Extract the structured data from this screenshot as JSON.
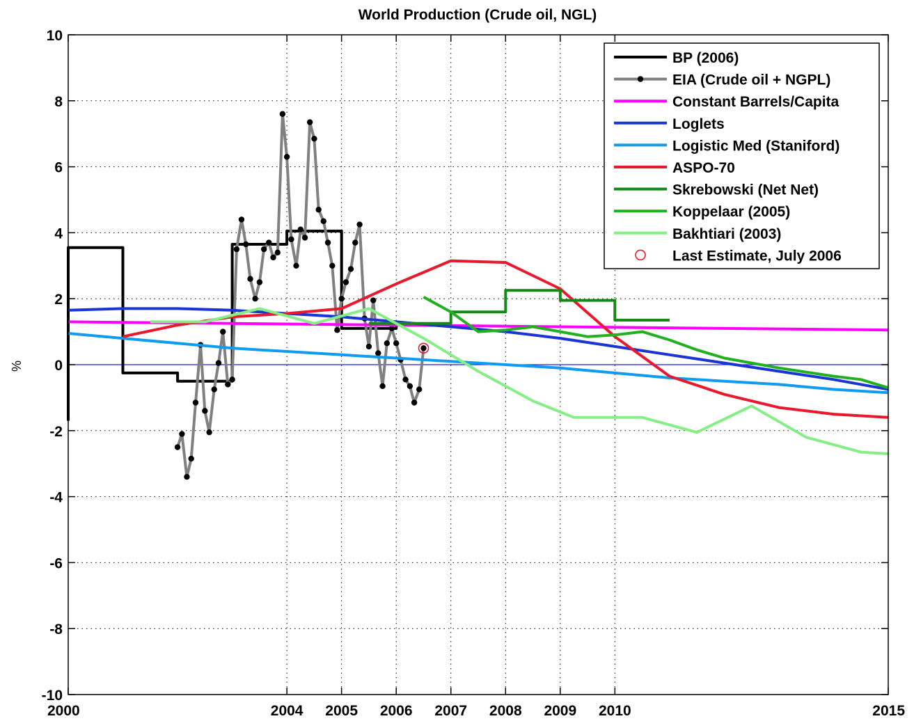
{
  "chart_data": {
    "type": "line",
    "title": "World Production (Crude oil, NGL)",
    "xlabel": "",
    "ylabel": "%",
    "xlim": [
      2000,
      2015
    ],
    "ylim": [
      -10,
      10
    ],
    "x_ticks": [
      2000,
      2004,
      2005,
      2006,
      2007,
      2008,
      2009,
      2010,
      2015
    ],
    "y_ticks": [
      -10,
      -8,
      -6,
      -4,
      -2,
      0,
      2,
      4,
      6,
      8,
      10
    ],
    "grid": true,
    "legend_position": "top-right",
    "series": [
      {
        "name": "BP (2006)",
        "color": "#000000",
        "style": "step",
        "points": [
          [
            2000,
            -1.7
          ],
          [
            2000,
            3.55
          ],
          [
            2001,
            3.55
          ],
          [
            2001,
            -0.25
          ],
          [
            2002,
            -0.25
          ],
          [
            2002,
            -0.5
          ],
          [
            2003,
            -0.5
          ],
          [
            2003,
            3.65
          ],
          [
            2004,
            3.65
          ],
          [
            2004,
            4.05
          ],
          [
            2005,
            4.05
          ],
          [
            2005,
            1.1
          ],
          [
            2006,
            1.1
          ],
          [
            2006,
            1.2
          ]
        ]
      },
      {
        "name": "EIA (Crude oil + NGPL)",
        "color": "#808080",
        "marker": "#000000",
        "style": "line-dots",
        "points": [
          [
            2002.0,
            -2.5
          ],
          [
            2002.08,
            -2.1
          ],
          [
            2002.17,
            -3.4
          ],
          [
            2002.25,
            -2.85
          ],
          [
            2002.33,
            -1.15
          ],
          [
            2002.42,
            0.6
          ],
          [
            2002.5,
            -1.4
          ],
          [
            2002.58,
            -2.05
          ],
          [
            2002.67,
            -0.75
          ],
          [
            2002.75,
            0.05
          ],
          [
            2002.83,
            1.0
          ],
          [
            2002.92,
            -0.6
          ],
          [
            2003.0,
            -0.45
          ],
          [
            2003.08,
            3.5
          ],
          [
            2003.17,
            4.4
          ],
          [
            2003.25,
            3.65
          ],
          [
            2003.33,
            2.6
          ],
          [
            2003.42,
            2.0
          ],
          [
            2003.5,
            2.5
          ],
          [
            2003.58,
            3.5
          ],
          [
            2003.67,
            3.7
          ],
          [
            2003.75,
            3.25
          ],
          [
            2003.83,
            3.4
          ],
          [
            2003.92,
            7.6
          ],
          [
            2004.0,
            6.3
          ],
          [
            2004.08,
            3.8
          ],
          [
            2004.17,
            3.0
          ],
          [
            2004.25,
            4.1
          ],
          [
            2004.33,
            3.85
          ],
          [
            2004.42,
            7.35
          ],
          [
            2004.5,
            6.85
          ],
          [
            2004.58,
            4.7
          ],
          [
            2004.67,
            4.35
          ],
          [
            2004.75,
            3.7
          ],
          [
            2004.83,
            3.0
          ],
          [
            2004.92,
            1.05
          ],
          [
            2005.0,
            2.0
          ],
          [
            2005.08,
            2.5
          ],
          [
            2005.17,
            2.9
          ],
          [
            2005.25,
            3.7
          ],
          [
            2005.33,
            4.25
          ],
          [
            2005.42,
            1.4
          ],
          [
            2005.5,
            0.55
          ],
          [
            2005.58,
            1.95
          ],
          [
            2005.67,
            0.35
          ],
          [
            2005.75,
            -0.65
          ],
          [
            2005.83,
            0.65
          ],
          [
            2005.92,
            1.1
          ],
          [
            2006.0,
            0.65
          ],
          [
            2006.08,
            0.15
          ],
          [
            2006.17,
            -0.45
          ],
          [
            2006.25,
            -0.65
          ],
          [
            2006.33,
            -1.15
          ],
          [
            2006.42,
            -0.75
          ],
          [
            2006.5,
            0.5
          ]
        ]
      },
      {
        "name": "Constant Barrels/Capita",
        "color": "#ff00ff",
        "style": "line",
        "points": [
          [
            2000,
            1.3
          ],
          [
            2003,
            1.25
          ],
          [
            2006,
            1.2
          ],
          [
            2009,
            1.15
          ],
          [
            2012,
            1.1
          ],
          [
            2015,
            1.05
          ]
        ]
      },
      {
        "name": "Loglets",
        "color": "#1a35d6",
        "style": "line",
        "points": [
          [
            2000,
            1.65
          ],
          [
            2001,
            1.7
          ],
          [
            2002,
            1.7
          ],
          [
            2003,
            1.65
          ],
          [
            2004,
            1.55
          ],
          [
            2005,
            1.45
          ],
          [
            2006,
            1.3
          ],
          [
            2007,
            1.15
          ],
          [
            2008,
            1.0
          ],
          [
            2009,
            0.8
          ],
          [
            2010,
            0.55
          ],
          [
            2011,
            0.3
          ],
          [
            2012,
            0.05
          ],
          [
            2013,
            -0.2
          ],
          [
            2014,
            -0.45
          ],
          [
            2015,
            -0.75
          ]
        ]
      },
      {
        "name": "Logistic Med (Staniford)",
        "color": "#0f9bf0",
        "style": "line",
        "points": [
          [
            2000,
            0.95
          ],
          [
            2001,
            0.8
          ],
          [
            2002,
            0.65
          ],
          [
            2003,
            0.5
          ],
          [
            2004,
            0.4
          ],
          [
            2005,
            0.3
          ],
          [
            2006,
            0.2
          ],
          [
            2007,
            0.1
          ],
          [
            2008,
            0.0
          ],
          [
            2009,
            -0.1
          ],
          [
            2010,
            -0.25
          ],
          [
            2011,
            -0.4
          ],
          [
            2012,
            -0.5
          ],
          [
            2013,
            -0.6
          ],
          [
            2014,
            -0.75
          ],
          [
            2015,
            -0.85
          ]
        ]
      },
      {
        "name": "ASPO-70",
        "color": "#e8192c",
        "style": "line",
        "points": [
          [
            2001,
            0.85
          ],
          [
            2002,
            1.2
          ],
          [
            2003,
            1.45
          ],
          [
            2004,
            1.55
          ],
          [
            2005,
            1.7
          ],
          [
            2006,
            2.45
          ],
          [
            2007,
            3.15
          ],
          [
            2008,
            3.1
          ],
          [
            2009,
            2.3
          ],
          [
            2010,
            0.85
          ],
          [
            2011,
            -0.35
          ],
          [
            2012,
            -0.9
          ],
          [
            2013,
            -1.3
          ],
          [
            2014,
            -1.5
          ],
          [
            2015,
            -1.6
          ]
        ]
      },
      {
        "name": "Skrebowski (Net Net)",
        "color": "#138a13",
        "style": "step",
        "points": [
          [
            2005.5,
            1.25
          ],
          [
            2007,
            1.25
          ],
          [
            2007,
            1.6
          ],
          [
            2008,
            1.6
          ],
          [
            2008,
            2.25
          ],
          [
            2009,
            2.25
          ],
          [
            2009,
            1.95
          ],
          [
            2010,
            1.95
          ],
          [
            2010,
            1.35
          ],
          [
            2011,
            1.35
          ]
        ]
      },
      {
        "name": "Koppelaar (2005)",
        "color": "#20b020",
        "style": "line",
        "points": [
          [
            2006.5,
            2.05
          ],
          [
            2007,
            1.6
          ],
          [
            2007.5,
            1.0
          ],
          [
            2008,
            1.05
          ],
          [
            2008.5,
            1.15
          ],
          [
            2009,
            1.0
          ],
          [
            2009.5,
            0.85
          ],
          [
            2010,
            0.9
          ],
          [
            2010.5,
            1.0
          ],
          [
            2011,
            0.75
          ],
          [
            2011.5,
            0.45
          ],
          [
            2012,
            0.2
          ],
          [
            2013,
            -0.1
          ],
          [
            2014,
            -0.35
          ],
          [
            2014.5,
            -0.45
          ],
          [
            2015,
            -0.7
          ]
        ]
      },
      {
        "name": "Bakhtiari (2003)",
        "color": "#86ee86",
        "style": "line",
        "points": [
          [
            2001.5,
            1.3
          ],
          [
            2002.5,
            1.3
          ],
          [
            2003.5,
            1.7
          ],
          [
            2004.5,
            1.25
          ],
          [
            2005.5,
            1.7
          ],
          [
            2006.5,
            0.8
          ],
          [
            2007.5,
            -0.2
          ],
          [
            2008.5,
            -1.1
          ],
          [
            2009.25,
            -1.6
          ],
          [
            2010,
            -1.6
          ],
          [
            2010.5,
            -1.6
          ],
          [
            2011.5,
            -2.05
          ],
          [
            2012.5,
            -1.25
          ],
          [
            2013.5,
            -2.2
          ],
          [
            2014.5,
            -2.65
          ],
          [
            2015,
            -2.7
          ]
        ]
      }
    ],
    "highlight": {
      "name": "Last Estimate, July 2006",
      "color": "#e8192c",
      "x": 2006.5,
      "y": 0.5
    }
  }
}
